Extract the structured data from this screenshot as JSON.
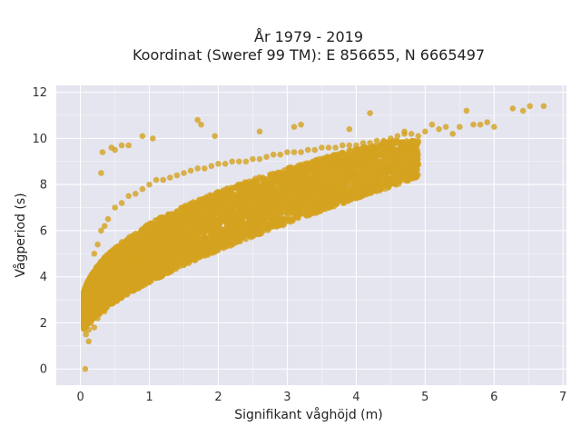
{
  "chart_data": {
    "type": "scatter",
    "title": "År 1979 - 2019",
    "subtitle": "Koordinat (Sweref 99 TM): E 856655, N 6665497",
    "xlabel": "Signifikant våghöjd (m)",
    "ylabel": "Vågperiod (s)",
    "xlim": [
      -0.35,
      7.05
    ],
    "ylim": [
      -0.7,
      12.3
    ],
    "xticks": [
      "0",
      "1",
      "2",
      "3",
      "4",
      "5",
      "6",
      "7"
    ],
    "yticks": [
      "0",
      "2",
      "4",
      "6",
      "8",
      "10",
      "12"
    ],
    "grid": true,
    "legend": "none",
    "marker_color": "#d4a21f",
    "plot_background": "#e5e5f0",
    "series": [
      {
        "x": [
          0.08,
          0.06,
          0.1,
          0.12,
          0.15,
          0.2,
          0.25,
          0.3,
          0.35,
          0.4,
          0.5,
          0.6,
          0.7,
          0.8,
          0.9,
          1.0,
          1.1,
          1.2,
          1.3,
          1.4,
          1.5,
          1.6,
          1.7,
          1.8,
          1.9,
          2.0,
          2.1,
          2.2,
          2.3,
          2.4,
          2.5,
          2.6,
          2.7,
          2.8,
          2.9,
          3.0,
          3.1,
          3.2,
          3.3,
          3.4,
          3.5,
          3.6,
          3.7,
          3.8,
          3.9,
          4.0,
          4.1,
          4.2,
          4.3,
          4.4,
          4.5,
          4.6,
          4.7,
          4.8,
          4.9,
          5.0,
          5.1,
          5.2,
          5.3,
          5.4,
          5.5,
          5.6,
          5.7,
          5.8,
          5.9,
          6.0,
          6.27,
          6.42,
          6.52,
          6.72,
          0.07,
          0.3,
          0.32,
          0.45,
          0.6,
          0.9,
          1.05,
          1.7,
          1.75,
          1.95,
          2.6,
          3.1,
          3.2,
          3.9,
          4.7,
          4.2,
          0.5,
          0.7,
          0.35,
          0.25,
          0.15,
          0.12,
          0.2,
          0.8,
          1.0,
          1.3,
          0.45,
          0.55,
          0.65,
          0.28
        ],
        "y": [
          1.5,
          2.5,
          3.2,
          1.2,
          4.0,
          5.0,
          5.4,
          6.0,
          6.2,
          6.5,
          7.0,
          7.2,
          7.5,
          7.6,
          7.8,
          8.0,
          8.2,
          8.2,
          8.3,
          8.4,
          8.5,
          8.6,
          8.7,
          8.7,
          8.8,
          8.9,
          8.9,
          9.0,
          9.0,
          9.0,
          9.1,
          9.1,
          9.2,
          9.3,
          9.3,
          9.4,
          9.4,
          9.4,
          9.5,
          9.5,
          9.6,
          9.6,
          9.6,
          9.7,
          9.7,
          9.7,
          9.8,
          9.8,
          9.9,
          9.9,
          10.0,
          10.1,
          10.2,
          10.2,
          10.1,
          10.3,
          10.6,
          10.4,
          10.5,
          10.2,
          10.5,
          11.2,
          10.6,
          10.6,
          10.7,
          10.5,
          11.3,
          11.2,
          11.4,
          11.4,
          0.0,
          8.5,
          9.4,
          9.6,
          9.7,
          10.1,
          10.0,
          10.8,
          10.6,
          10.1,
          10.3,
          10.5,
          10.6,
          10.4,
          10.3,
          11.1,
          9.5,
          9.7,
          2.5,
          2.2,
          2.0,
          1.7,
          1.8,
          3.5,
          3.8,
          4.3,
          2.9,
          3.2,
          3.4,
          2.4
        ]
      }
    ]
  }
}
